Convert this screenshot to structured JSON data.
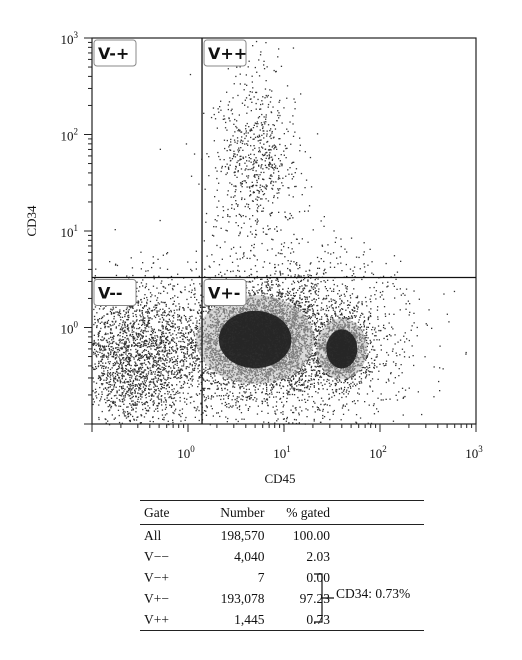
{
  "chart_data": {
    "type": "scatter",
    "xlabel": "CD45",
    "ylabel": "CD34",
    "x_scale": "log",
    "y_scale": "log",
    "xlim": [
      0.1,
      1000
    ],
    "ylim": [
      0.1,
      1000
    ],
    "x_ticks": [
      {
        "base": "10",
        "exp": "0",
        "value": 1
      },
      {
        "base": "10",
        "exp": "1",
        "value": 10
      },
      {
        "base": "10",
        "exp": "2",
        "value": 100
      },
      {
        "base": "10",
        "exp": "3",
        "value": 1000
      }
    ],
    "y_ticks": [
      {
        "base": "10",
        "exp": "0",
        "value": 1
      },
      {
        "base": "10",
        "exp": "1",
        "value": 10
      },
      {
        "base": "10",
        "exp": "2",
        "value": 100
      },
      {
        "base": "10",
        "exp": "3",
        "value": 1000
      }
    ],
    "gate_thresholds": {
      "x": 1.4,
      "y": 3.3
    },
    "gates": [
      {
        "id": "Vmp",
        "label": "V-+",
        "quadrant": "top-left"
      },
      {
        "id": "Vpp",
        "label": "V++",
        "quadrant": "top-right"
      },
      {
        "id": "Vmm",
        "label": "V--",
        "quadrant": "bottom-left"
      },
      {
        "id": "Vpm",
        "label": "V+-",
        "quadrant": "bottom-right"
      }
    ],
    "populations": [
      {
        "center": [
          5,
          0.75
        ],
        "spread": [
          0.28,
          0.22
        ],
        "density": "very high"
      },
      {
        "center": [
          40,
          0.6
        ],
        "spread": [
          0.12,
          0.15
        ],
        "density": "high"
      },
      {
        "center": [
          12,
          0.8
        ],
        "spread": [
          0.55,
          0.45
        ],
        "density": "medium"
      },
      {
        "center": [
          0.3,
          0.5
        ],
        "spread": [
          0.4,
          0.38
        ],
        "density": "medium"
      },
      {
        "center": [
          5,
          60
        ],
        "spread": [
          0.22,
          0.45
        ],
        "density": "low"
      }
    ],
    "point_color": "#333333"
  },
  "table": {
    "headers": [
      "Gate",
      "Number",
      "% gated"
    ],
    "rows": [
      {
        "gate": "All",
        "number": "198,570",
        "pct": "100.00"
      },
      {
        "gate": "V−−",
        "number": "4,040",
        "pct": "2.03"
      },
      {
        "gate": "V−+",
        "number": "7",
        "pct": "0.00"
      },
      {
        "gate": "V+−",
        "number": "193,078",
        "pct": "97.23"
      },
      {
        "gate": "V++",
        "number": "1,445",
        "pct": "0.73"
      }
    ],
    "annotation": "CD34: 0.73%"
  }
}
